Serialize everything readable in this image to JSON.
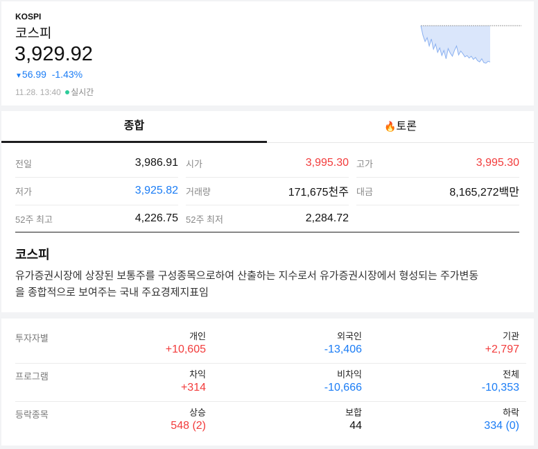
{
  "header": {
    "code": "KOSPI",
    "name": "코스피",
    "price": "3,929.92",
    "change": "56.99",
    "change_pct": "-1.43%",
    "direction_icon": "triangle-down-icon",
    "time": "11.28. 13:40",
    "realtime": "실시간"
  },
  "sparkline": {
    "type": "area",
    "baseline": 3986.91,
    "values": [
      3986.91,
      3972,
      3962,
      3968,
      3955,
      3966,
      3950,
      3958,
      3945,
      3952,
      3940,
      3948,
      3935,
      3951,
      3944,
      3939,
      3948,
      3955,
      3941,
      3947,
      3943,
      3938,
      3940,
      3936,
      3939,
      3934,
      3937,
      3932,
      3930,
      3935,
      3929,
      3928,
      3931,
      3929.92
    ]
  },
  "tabs": [
    {
      "label": "종합",
      "active": true
    },
    {
      "label": "토론",
      "icon": "fire-icon",
      "active": false
    }
  ],
  "stats": [
    {
      "label": "전일",
      "value": "3,986.91",
      "color": "normal"
    },
    {
      "label": "시가",
      "value": "3,995.30",
      "color": "red"
    },
    {
      "label": "고가",
      "value": "3,995.30",
      "color": "red"
    },
    {
      "label": "저가",
      "value": "3,925.82",
      "color": "blue"
    },
    {
      "label": "거래량",
      "value": "171,675천주",
      "color": "normal"
    },
    {
      "label": "대금",
      "value": "8,165,272백만",
      "color": "normal"
    },
    {
      "label": "52주 최고",
      "value": "4,226.75",
      "color": "normal"
    },
    {
      "label": "52주 최저",
      "value": "2,284.72",
      "color": "normal"
    }
  ],
  "description": {
    "title": "코스피",
    "line1": "유가증권시장에 상장된 보통주를 구성종목으로하여 산출하는 지수로서 유가증권시장에서 형성되는 주가변동",
    "line2": "을 종합적으로 보여주는 국내 주요경제지표임"
  },
  "investors": [
    {
      "label": "투자자별",
      "cols": [
        {
          "h": "개인",
          "v": "+10,605",
          "c": "red"
        },
        {
          "h": "외국인",
          "v": "-13,406",
          "c": "blue"
        },
        {
          "h": "기관",
          "v": "+2,797",
          "c": "red"
        }
      ]
    },
    {
      "label": "프로그램",
      "cols": [
        {
          "h": "차익",
          "v": "+314",
          "c": "red"
        },
        {
          "h": "비차익",
          "v": "-10,666",
          "c": "blue"
        },
        {
          "h": "전체",
          "v": "-10,353",
          "c": "blue"
        }
      ]
    },
    {
      "label": "등락종목",
      "cols": [
        {
          "h": "상승",
          "v": "548 (2)",
          "c": "red"
        },
        {
          "h": "보합",
          "v": "44",
          "c": "normal"
        },
        {
          "h": "하락",
          "v": "334 (0)",
          "c": "blue"
        }
      ]
    }
  ],
  "colors": {
    "up": "#f23b3b",
    "down": "#1a7cf5",
    "live": "#2ecc9a"
  }
}
